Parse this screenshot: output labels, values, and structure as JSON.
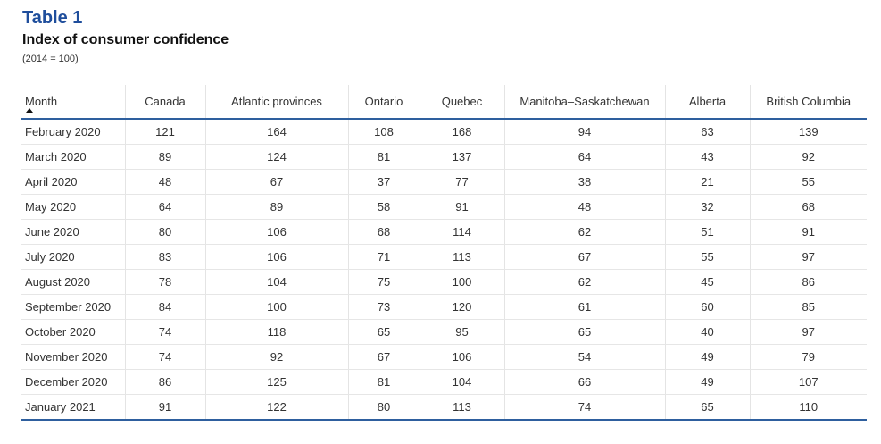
{
  "header": {
    "title": "Table 1",
    "subtitle": "Index of consumer confidence",
    "note": "(2014 = 100)"
  },
  "table": {
    "columns": [
      "Month",
      "Canada",
      "Atlantic provinces",
      "Ontario",
      "Quebec",
      "Manitoba–Saskatchewan",
      "Alberta",
      "British Columbia"
    ],
    "rows": [
      [
        "February 2020",
        121,
        164,
        108,
        168,
        94,
        63,
        139
      ],
      [
        "March 2020",
        89,
        124,
        81,
        137,
        64,
        43,
        92
      ],
      [
        "April 2020",
        48,
        67,
        37,
        77,
        38,
        21,
        55
      ],
      [
        "May 2020",
        64,
        89,
        58,
        91,
        48,
        32,
        68
      ],
      [
        "June 2020",
        80,
        106,
        68,
        114,
        62,
        51,
        91
      ],
      [
        "July 2020",
        83,
        106,
        71,
        113,
        67,
        55,
        97
      ],
      [
        "August 2020",
        78,
        104,
        75,
        100,
        62,
        45,
        86
      ],
      [
        "September 2020",
        84,
        100,
        73,
        120,
        61,
        60,
        85
      ],
      [
        "October 2020",
        74,
        118,
        65,
        95,
        65,
        40,
        97
      ],
      [
        "November 2020",
        74,
        92,
        67,
        106,
        54,
        49,
        79
      ],
      [
        "December 2020",
        86,
        125,
        81,
        104,
        66,
        49,
        107
      ],
      [
        "January 2021",
        91,
        122,
        80,
        113,
        74,
        65,
        110
      ]
    ]
  }
}
